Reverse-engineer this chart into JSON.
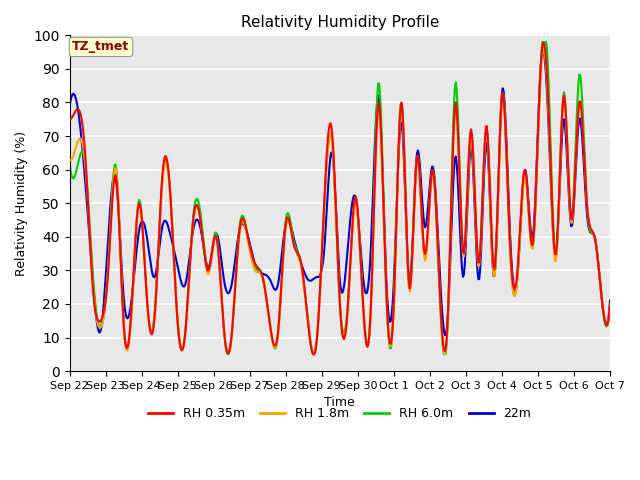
{
  "title": "Relativity Humidity Profile",
  "xlabel": "Time",
  "ylabel": "Relativity Humidity (%)",
  "annotation_text": "TZ_tmet",
  "annotation_color": "#8B0000",
  "annotation_bg": "#FFFFCC",
  "ylim": [
    0,
    100
  ],
  "yticks": [
    0,
    10,
    20,
    30,
    40,
    50,
    60,
    70,
    80,
    90,
    100
  ],
  "bg_color": "#E8E8E8",
  "colors": {
    "RH 0.35m": "#FF0000",
    "RH 1.8m": "#FFA500",
    "RH 6.0m": "#00CC00",
    "22m": "#0000CD"
  },
  "line_width": 1.5,
  "legend_labels": [
    "RH 0.35m",
    "RH 1.8m",
    "RH 6.0m",
    "22m"
  ],
  "xtick_labels": [
    "Sep 22",
    "Sep 23",
    "Sep 24",
    "Sep 25",
    "Sep 26",
    "Sep 27",
    "Sep 28",
    "Sep 29",
    "Sep 30",
    "Oct 1",
    "Oct 2",
    "Oct 3",
    "Oct 4",
    "Oct 5",
    "Oct 6",
    "Oct 7"
  ],
  "rh_035": [
    75,
    78,
    65,
    25,
    15,
    30,
    58,
    14,
    18,
    50,
    22,
    16,
    58,
    54,
    14,
    12,
    45,
    44,
    30,
    40,
    12,
    11,
    42,
    41,
    32,
    28,
    13,
    12,
    44,
    38,
    32,
    12,
    9,
    52,
    71,
    20,
    18,
    52,
    20,
    18,
    80,
    25,
    21,
    80,
    25,
    64,
    35,
    60,
    21,
    17,
    80,
    35,
    72,
    32,
    73,
    30,
    82,
    40,
    30,
    60,
    38,
    90,
    80,
    35,
    82,
    45,
    80,
    50,
    40,
    20,
    20
  ],
  "rh_18": [
    63,
    68,
    62,
    26,
    13,
    31,
    60,
    14,
    17,
    50,
    22,
    16,
    56,
    53,
    14,
    12,
    44,
    44,
    29,
    40,
    12,
    11,
    41,
    40,
    30,
    28,
    13,
    11,
    43,
    38,
    31,
    12,
    9,
    50,
    68,
    20,
    18,
    50,
    20,
    18,
    78,
    24,
    20,
    78,
    24,
    63,
    33,
    59,
    20,
    16,
    78,
    34,
    70,
    31,
    72,
    28,
    81,
    38,
    28,
    58,
    37,
    88,
    78,
    33,
    82,
    44,
    80,
    50,
    40,
    20,
    20
  ],
  "rh_60": [
    62,
    61,
    62,
    29,
    13,
    32,
    61,
    14,
    18,
    51,
    22,
    17,
    57,
    54,
    15,
    12,
    46,
    46,
    30,
    41,
    12,
    11,
    43,
    41,
    31,
    28,
    13,
    11,
    45,
    39,
    32,
    12,
    9,
    50,
    68,
    21,
    19,
    51,
    21,
    19,
    86,
    25,
    20,
    80,
    25,
    64,
    34,
    60,
    20,
    16,
    86,
    35,
    71,
    32,
    72,
    28,
    82,
    39,
    28,
    59,
    37,
    90,
    88,
    34,
    83,
    45,
    88,
    50,
    40,
    20,
    20
  ],
  "rh_22m": [
    79,
    79,
    57,
    27,
    12,
    40,
    57,
    22,
    21,
    42,
    40,
    28,
    43,
    41,
    31,
    26,
    42,
    42,
    31,
    41,
    27,
    26,
    42,
    41,
    32,
    29,
    27,
    26,
    44,
    40,
    32,
    27,
    28,
    37,
    65,
    27,
    36,
    52,
    28,
    36,
    82,
    28,
    27,
    74,
    27,
    65,
    43,
    61,
    27,
    17,
    64,
    28,
    67,
    27,
    68,
    28,
    83,
    43,
    28,
    60,
    40,
    90,
    75,
    35,
    75,
    43,
    75,
    47,
    40,
    20,
    21
  ]
}
